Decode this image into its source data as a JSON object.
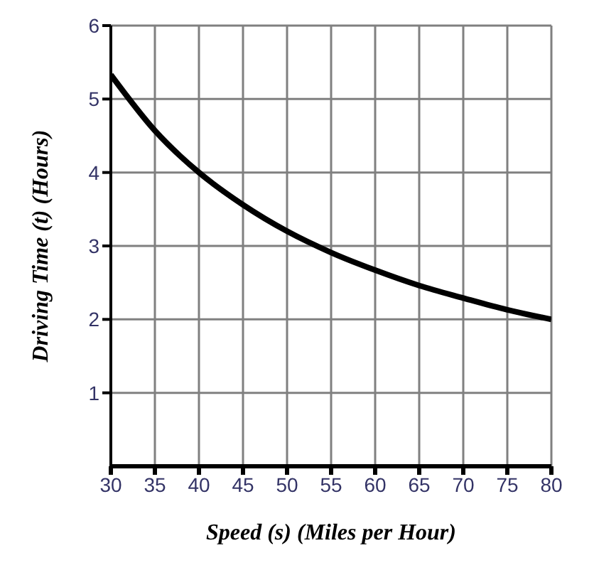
{
  "chart_data": {
    "type": "line",
    "xlabel": "Speed (s) (Miles per Hour)",
    "ylabel": "Driving Time (t) (Hours)",
    "x": [
      30,
      35,
      40,
      45,
      50,
      55,
      60,
      65,
      70,
      75,
      80
    ],
    "series": [
      {
        "color": "#000000",
        "values": [
          5.33,
          4.57,
          4,
          3.56,
          3.2,
          2.91,
          2.67,
          2.46,
          2.29,
          2.13,
          2
        ]
      }
    ],
    "xlim": [
      30,
      80
    ],
    "xticks": [
      30,
      35,
      40,
      45,
      50,
      55,
      60,
      65,
      70,
      75,
      80
    ],
    "ylim": [
      0,
      6
    ],
    "yticks": [
      1,
      2,
      3,
      4,
      5,
      6
    ],
    "grid": true,
    "marker": "none",
    "line_style": "solid",
    "legend": false
  }
}
